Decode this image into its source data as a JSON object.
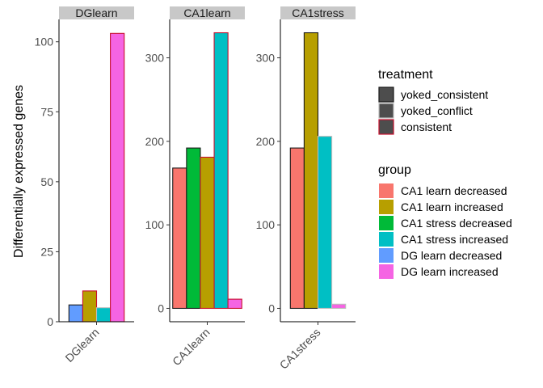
{
  "chart_data": {
    "type": "bar",
    "ylabel": "Differentially expressed genes",
    "legend_position": "right",
    "panels": [
      {
        "strip": "DGlearn",
        "category": "DGlearn",
        "ylim": [
          0,
          108
        ],
        "yticks": [
          0,
          25,
          50,
          75,
          100
        ],
        "bars": [
          {
            "group": "DG learn decreased",
            "treatment": "yoked_consistent",
            "value": 6
          },
          {
            "group": "CA1 learn increased",
            "treatment": "consistent",
            "value": 11
          },
          {
            "group": "CA1 stress increased",
            "treatment": "yoked_conflict",
            "value": 5
          },
          {
            "group": "DG learn increased",
            "treatment": "consistent",
            "value": 103
          }
        ]
      },
      {
        "strip": "CA1learn",
        "category": "CA1learn",
        "ylim": [
          -16,
          346
        ],
        "yticks": [
          0,
          100,
          200,
          300
        ],
        "bars": [
          {
            "group": "CA1 learn decreased",
            "treatment": "yoked_consistent",
            "value": 168
          },
          {
            "group": "CA1 stress decreased",
            "treatment": "yoked_consistent",
            "value": 192
          },
          {
            "group": "CA1 learn increased",
            "treatment": "consistent",
            "value": 181
          },
          {
            "group": "CA1 stress increased",
            "treatment": "consistent",
            "value": 330
          },
          {
            "group": "DG learn increased",
            "treatment": "consistent",
            "value": 11
          }
        ]
      },
      {
        "strip": "CA1stress",
        "category": "CA1stress",
        "ylim": [
          -16,
          346
        ],
        "yticks": [
          0,
          100,
          200,
          300
        ],
        "bars": [
          {
            "group": "CA1 learn decreased",
            "treatment": "yoked_consistent",
            "value": 192
          },
          {
            "group": "CA1 learn increased",
            "treatment": "yoked_consistent",
            "value": 330
          },
          {
            "group": "CA1 stress increased",
            "treatment": "yoked_conflict",
            "value": 206
          },
          {
            "group": "DG learn increased",
            "treatment": "yoked_conflict",
            "value": 5
          }
        ]
      }
    ],
    "legends": {
      "treatment": {
        "title": "treatment",
        "items": [
          {
            "label": "yoked_consistent",
            "fill": "#4d4d4d",
            "stroke": "#1a1a1a"
          },
          {
            "label": "yoked_conflict",
            "fill": "#4d4d4d",
            "stroke": "#bdbdbd"
          },
          {
            "label": "consistent",
            "fill": "#4d4d4d",
            "stroke": "#c8102e"
          }
        ]
      },
      "group": {
        "title": "group",
        "items": [
          {
            "label": "CA1 learn decreased",
            "color": "#F8766D"
          },
          {
            "label": "CA1 learn increased",
            "color": "#B79F00"
          },
          {
            "label": "CA1 stress decreased",
            "color": "#00BA38"
          },
          {
            "label": "CA1 stress increased",
            "color": "#00BFC4"
          },
          {
            "label": "DG learn decreased",
            "color": "#619CFF"
          },
          {
            "label": "DG learn increased",
            "color": "#F564E3"
          }
        ]
      }
    }
  }
}
